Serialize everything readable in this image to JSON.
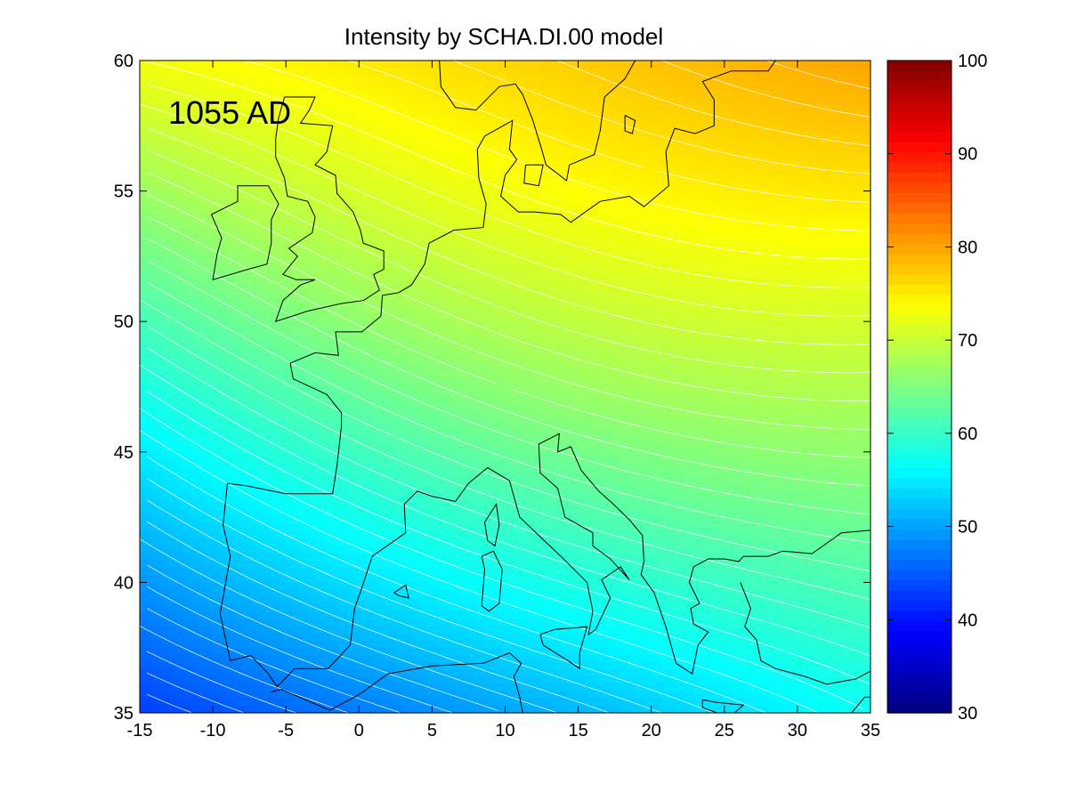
{
  "chart_data": {
    "type": "heatmap",
    "title": "Intensity by SCHA.DI.00 model",
    "annotation": "1055 AD",
    "xlabel": "",
    "ylabel": "",
    "xlim": [
      -15,
      35
    ],
    "ylim": [
      35,
      60
    ],
    "x_ticks": [
      "-15",
      "-10",
      "-5",
      "0",
      "5",
      "10",
      "15",
      "20",
      "25",
      "30",
      "35"
    ],
    "y_ticks": [
      "35",
      "40",
      "45",
      "50",
      "55",
      "60"
    ],
    "colorbar": {
      "min": 30,
      "max": 100,
      "ticks": [
        "30",
        "40",
        "50",
        "60",
        "70",
        "80",
        "90",
        "100"
      ],
      "colormap": "jet"
    },
    "field_samples": [
      {
        "lon": -15,
        "lat": 35,
        "value": 43
      },
      {
        "lon": -15,
        "lat": 60,
        "value": 73
      },
      {
        "lon": 35,
        "lat": 35,
        "value": 57
      },
      {
        "lon": 35,
        "lat": 60,
        "value": 80
      },
      {
        "lon": 10,
        "lat": 47.5,
        "value": 66
      }
    ],
    "contour_interval": 1,
    "contour_color": "#ffffff",
    "coastline_color": "#000000",
    "grid": false
  }
}
